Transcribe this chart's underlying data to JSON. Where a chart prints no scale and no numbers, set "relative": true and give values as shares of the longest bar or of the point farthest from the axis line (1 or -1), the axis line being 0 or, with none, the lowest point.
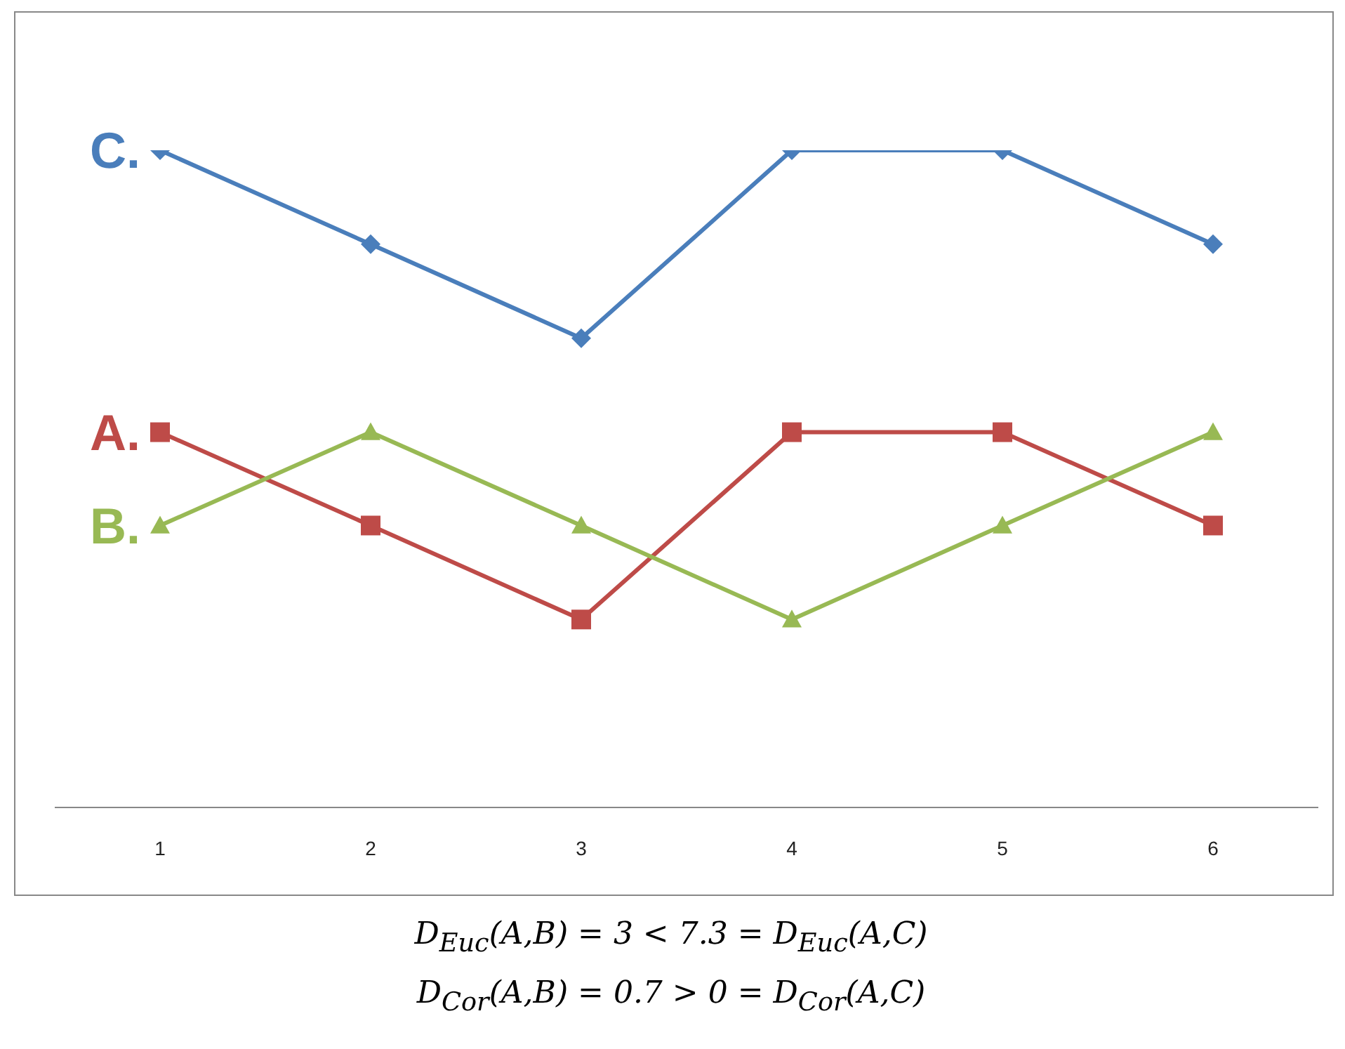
{
  "chart_data": {
    "type": "line",
    "relative": true,
    "categories": [
      "1",
      "2",
      "3",
      "4",
      "5",
      "6"
    ],
    "series": [
      {
        "name": "C.",
        "color": "#4a7ebb",
        "marker": "diamond",
        "values": [
          1,
          0.857,
          0.714,
          1,
          1,
          0.857
        ]
      },
      {
        "name": "A.",
        "color": "#be4b48",
        "marker": "square",
        "values": [
          0.571,
          0.429,
          0.286,
          0.571,
          0.571,
          0.429
        ]
      },
      {
        "name": "B.",
        "color": "#98b954",
        "marker": "triangle",
        "values": [
          0.429,
          0.571,
          0.429,
          0.286,
          0.429,
          0.571
        ]
      }
    ],
    "grid": false,
    "legend": false,
    "annotations": [
      "D$_{Euc}$(A,B) = 3 < 7.3 = D$_{Euc}$(A,C)",
      "D$_{Cor}$(A,B) = 0.7 > 0 = D$_{Cor}$(A,C)"
    ]
  }
}
